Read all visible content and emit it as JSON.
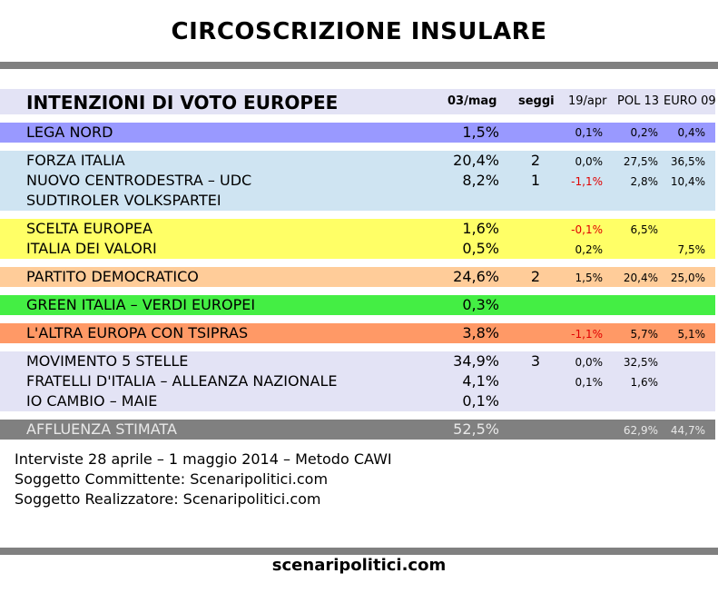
{
  "title": "CIRCOSCRIZIONE INSULARE",
  "header": {
    "title": "INTENZIONI DI VOTO EUROPEE",
    "col_date": "03/mag",
    "col_seats": "seggi",
    "col_apr": "19/apr",
    "col_pol": "POL 13",
    "col_euro": "EURO 09"
  },
  "colors": {
    "header": "#e3e3f5",
    "lega": "#9999ff",
    "centrodestra": "#cfe4f2",
    "centro": "#ffff66",
    "pd": "#ffcc99",
    "green": "#44ee44",
    "tsipras": "#ff9966",
    "m5s": "#e3e3f5",
    "affluenza": "#808080"
  },
  "rows": {
    "lega": {
      "name": "LEGA NORD",
      "val": "1,5%",
      "seats": "",
      "apr": "0,1%",
      "pol": "0,2%",
      "euro": "0,4%"
    },
    "fi": {
      "name": "FORZA ITALIA",
      "val": "20,4%",
      "seats": "2",
      "apr": "0,0%",
      "pol": "27,5%",
      "euro": "36,5%"
    },
    "ncd": {
      "name": "NUOVO CENTRODESTRA – UDC",
      "val": "8,2%",
      "seats": "1",
      "apr": "-1,1%",
      "pol": "2,8%",
      "euro": "10,4%"
    },
    "svp": {
      "name": "SUDTIROLER VOLKSPARTEI",
      "val": "",
      "seats": "",
      "apr": "",
      "pol": "",
      "euro": ""
    },
    "scelta": {
      "name": "SCELTA EUROPEA",
      "val": "1,6%",
      "seats": "",
      "apr": "-0,1%",
      "pol": "6,5%",
      "euro": ""
    },
    "idv": {
      "name": "ITALIA DEI VALORI",
      "val": "0,5%",
      "seats": "",
      "apr": "0,2%",
      "pol": "",
      "euro": "7,5%"
    },
    "pd": {
      "name": "PARTITO DEMOCRATICO",
      "val": "24,6%",
      "seats": "2",
      "apr": "1,5%",
      "pol": "20,4%",
      "euro": "25,0%"
    },
    "green": {
      "name": "GREEN ITALIA – VERDI EUROPEI",
      "val": "0,3%",
      "seats": "",
      "apr": "",
      "pol": "",
      "euro": ""
    },
    "tsipras": {
      "name": "L'ALTRA EUROPA CON TSIPRAS",
      "val": "3,8%",
      "seats": "",
      "apr": "-1,1%",
      "pol": "5,7%",
      "euro": "5,1%"
    },
    "m5s": {
      "name": "MOVIMENTO 5 STELLE",
      "val": "34,9%",
      "seats": "3",
      "apr": "0,0%",
      "pol": "32,5%",
      "euro": ""
    },
    "fdi": {
      "name": "FRATELLI D'ITALIA – ALLEANZA NAZIONALE",
      "val": "4,1%",
      "seats": "",
      "apr": "0,1%",
      "pol": "1,6%",
      "euro": ""
    },
    "maie": {
      "name": "IO CAMBIO – MAIE",
      "val": "0,1%",
      "seats": "",
      "apr": "",
      "pol": "",
      "euro": ""
    },
    "affluenza": {
      "name": "AFFLUENZA STIMATA",
      "val": "52,5%",
      "seats": "",
      "apr": "",
      "pol": "62,9%",
      "euro": "44,7%"
    }
  },
  "notes": [
    "Interviste 28 aprile – 1 maggio 2014 – Metodo CAWI",
    "Soggetto Committente: Scenaripolitici.com",
    "Soggetto Realizzatore: Scenaripolitici.com"
  ],
  "footer": "scenaripolitici.com"
}
